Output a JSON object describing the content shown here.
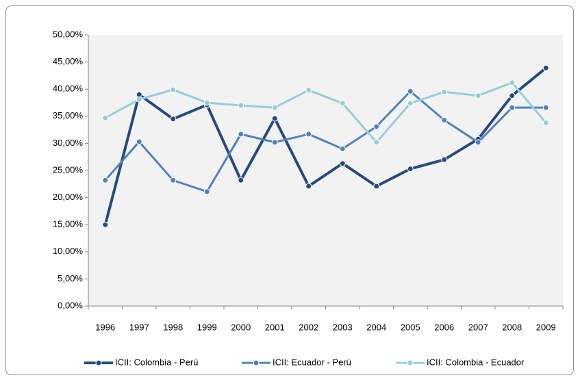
{
  "chart_data": {
    "type": "line",
    "categories": [
      "1996",
      "1997",
      "1998",
      "1999",
      "2000",
      "2001",
      "2002",
      "2003",
      "2004",
      "2005",
      "2006",
      "2007",
      "2008",
      "2009"
    ],
    "series": [
      {
        "name": "ICII: Colombia - Perú",
        "color": "#244b7f",
        "values": [
          15.0,
          39.0,
          34.5,
          37.1,
          23.2,
          34.6,
          22.1,
          26.3,
          22.1,
          25.3,
          27.0,
          30.8,
          38.8,
          43.9
        ]
      },
      {
        "name": "ICII: Ecuador - Perú",
        "color": "#4f81bd",
        "values": [
          23.2,
          30.3,
          23.2,
          21.1,
          31.7,
          30.2,
          31.7,
          29.0,
          33.1,
          39.6,
          34.3,
          30.2,
          36.6,
          36.6
        ]
      },
      {
        "name": "ICII: Colombia - Ecuador",
        "color": "#93cddd",
        "values": [
          34.7,
          38.1,
          39.9,
          37.5,
          37.0,
          36.6,
          39.8,
          37.4,
          30.2,
          37.4,
          39.5,
          38.8,
          41.2,
          33.8
        ]
      }
    ],
    "ylim": [
      0,
      50
    ],
    "yticks": [
      {
        "value": 0,
        "label": "0,00%"
      },
      {
        "value": 5,
        "label": "5,00%"
      },
      {
        "value": 10,
        "label": "10,00%"
      },
      {
        "value": 15,
        "label": "15,00%"
      },
      {
        "value": 20,
        "label": "20,00%"
      },
      {
        "value": 25,
        "label": "25,00%"
      },
      {
        "value": 30,
        "label": "30,00%"
      },
      {
        "value": 35,
        "label": "35,00%"
      },
      {
        "value": 40,
        "label": "40,00%"
      },
      {
        "value": 45,
        "label": "45,00%"
      },
      {
        "value": 50,
        "label": "50,00%"
      }
    ],
    "grid": false,
    "legend": "bottom"
  }
}
